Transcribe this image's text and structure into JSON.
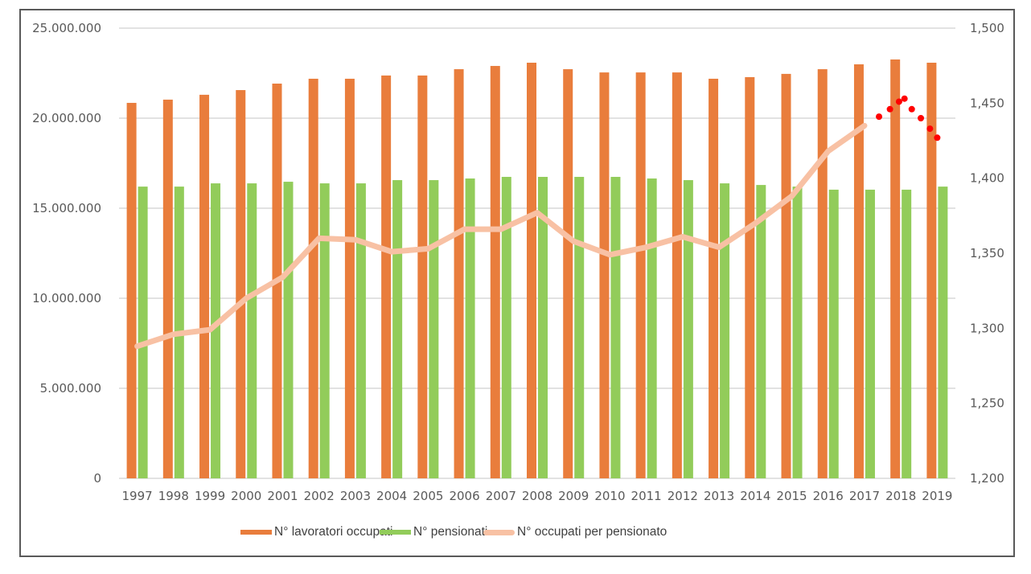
{
  "chart_data": {
    "type": "bar",
    "combo": "bar+line (secondary axis)",
    "title": "",
    "xlabel": "",
    "ylabel": "",
    "categories": [
      "1997",
      "1998",
      "1999",
      "2000",
      "2001",
      "2002",
      "2003",
      "2004",
      "2005",
      "2006",
      "2007",
      "2008",
      "2009",
      "2010",
      "2011",
      "2012",
      "2013",
      "2014",
      "2015",
      "2016",
      "2017",
      "2018",
      "2019"
    ],
    "series": [
      {
        "name": "N° lavoratori occupati",
        "type": "bar",
        "axis": "left",
        "color": "#E97D3C",
        "values": [
          20850000,
          21030000,
          21300000,
          21560000,
          21920000,
          22190000,
          22190000,
          22370000,
          22370000,
          22720000,
          22900000,
          23080000,
          22720000,
          22540000,
          22540000,
          22540000,
          22190000,
          22280000,
          22460000,
          22720000,
          22990000,
          23260000,
          23080000
        ]
      },
      {
        "name": "N° pensionati",
        "type": "bar",
        "axis": "left",
        "color": "#92CC5A",
        "values": [
          16200000,
          16200000,
          16380000,
          16380000,
          16470000,
          16380000,
          16380000,
          16560000,
          16560000,
          16650000,
          16740000,
          16740000,
          16740000,
          16740000,
          16650000,
          16560000,
          16380000,
          16290000,
          16200000,
          16030000,
          16030000,
          16030000,
          16200000
        ]
      },
      {
        "name": "N° occupati per pensionato",
        "type": "line",
        "axis": "right",
        "color": "#F8C1A4",
        "values": [
          1.288,
          1.296,
          1.299,
          1.32,
          1.334,
          1.36,
          1.359,
          1.351,
          1.353,
          1.366,
          1.366,
          1.377,
          1.358,
          1.349,
          1.354,
          1.361,
          1.354,
          1.37,
          1.388,
          1.418,
          1.435,
          null,
          null
        ]
      }
    ],
    "annotation": {
      "name": "red dotted projection",
      "type": "scatter",
      "axis": "right",
      "color": "#FF0000",
      "points": [
        {
          "x": 2017.4,
          "y": 1.441
        },
        {
          "x": 2017.7,
          "y": 1.446
        },
        {
          "x": 2017.95,
          "y": 1.451
        },
        {
          "x": 2018.1,
          "y": 1.453
        },
        {
          "x": 2018.3,
          "y": 1.446
        },
        {
          "x": 2018.55,
          "y": 1.44
        },
        {
          "x": 2018.8,
          "y": 1.433
        },
        {
          "x": 2019.0,
          "y": 1.427
        }
      ]
    },
    "y_left": {
      "ylim": [
        0,
        25000000
      ],
      "ticks": [
        0,
        5000000,
        10000000,
        15000000,
        20000000,
        25000000
      ],
      "tick_labels": [
        "0",
        "5.000.000",
        "10.000.000",
        "15.000.000",
        "20.000.000",
        "25.000.000"
      ]
    },
    "y_right": {
      "ylim": [
        1.2,
        1.5
      ],
      "ticks": [
        1.2,
        1.25,
        1.3,
        1.35,
        1.4,
        1.45,
        1.5
      ],
      "tick_labels": [
        "1,200",
        "1,250",
        "1,300",
        "1,350",
        "1,400",
        "1,450",
        "1,500"
      ]
    },
    "grid": true,
    "legend_position": "bottom"
  },
  "legend": [
    {
      "label": "N° lavoratori occupati",
      "color": "#E97D3C",
      "kind": "bar"
    },
    {
      "label": "N° pensionati",
      "color": "#92CC5A",
      "kind": "bar"
    },
    {
      "label": "N° occupati per pensionato",
      "color": "#F8C1A4",
      "kind": "line"
    }
  ]
}
